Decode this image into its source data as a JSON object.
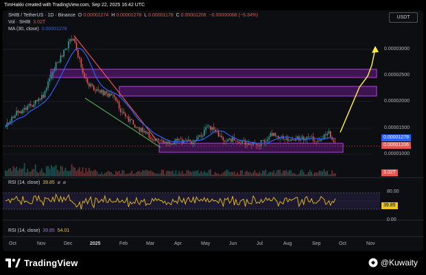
{
  "header": {
    "attribution": "TimHakki created with TradingView.com, Sep 22, 2025 16:42 UTC"
  },
  "legend": {
    "symbol": "SHIB / TetherUS · 1D · Binance",
    "open_label": "O",
    "open": "0.00001274",
    "high_label": "H",
    "high": "0.00001278",
    "low_label": "L",
    "low": "0.00001178",
    "close_label": "C",
    "close": "0.00001206",
    "change": "−0.00000068 (−5.34%)",
    "vol_label": "Vol · SHIB",
    "vol_value": "3.02T",
    "ma_label": "MA (30, close)",
    "ma_value": "0.00001278"
  },
  "currency_button": "USDT",
  "price_axis": {
    "ticks": [
      "0.00003000",
      "0.00002500",
      "0.00002000",
      "0.00001500",
      "0.00001000"
    ],
    "last_price_badge": "0.00001278",
    "close_badge": "0.00001206",
    "volume_badge": "3.02T"
  },
  "rsi_panel": {
    "label": "RSI (14, close)",
    "value": "39.85",
    "ticks": [
      "80.00",
      "0.00"
    ],
    "badge": "39.85"
  },
  "rsi_panel_2": {
    "label": "RSI (14, close)",
    "value1": "39.85",
    "value2": "54.01"
  },
  "time_axis": {
    "months": [
      "Oct",
      "Nov",
      "Dec",
      "2025",
      "Feb",
      "Mar",
      "Apr",
      "May",
      "Jun",
      "Jul",
      "Aug",
      "Sep",
      "Oct",
      "Nov"
    ]
  },
  "footer": {
    "brand": "TradingView",
    "handle": "@Kuwaity"
  },
  "colors": {
    "up": "#26a69a",
    "down": "#ef5350",
    "ma": "#2962ff",
    "zone": "#7b1fa2",
    "projection": "#ffeb3b",
    "rsi": "#f0c419",
    "legend_value": "#ef5350",
    "last_badge": "#2962ff",
    "close_badge": "#ef5350"
  },
  "icons": [
    "tradingview-logo-icon",
    "bitget-logo-icon",
    "eye-icon",
    "gear-icon"
  ]
}
